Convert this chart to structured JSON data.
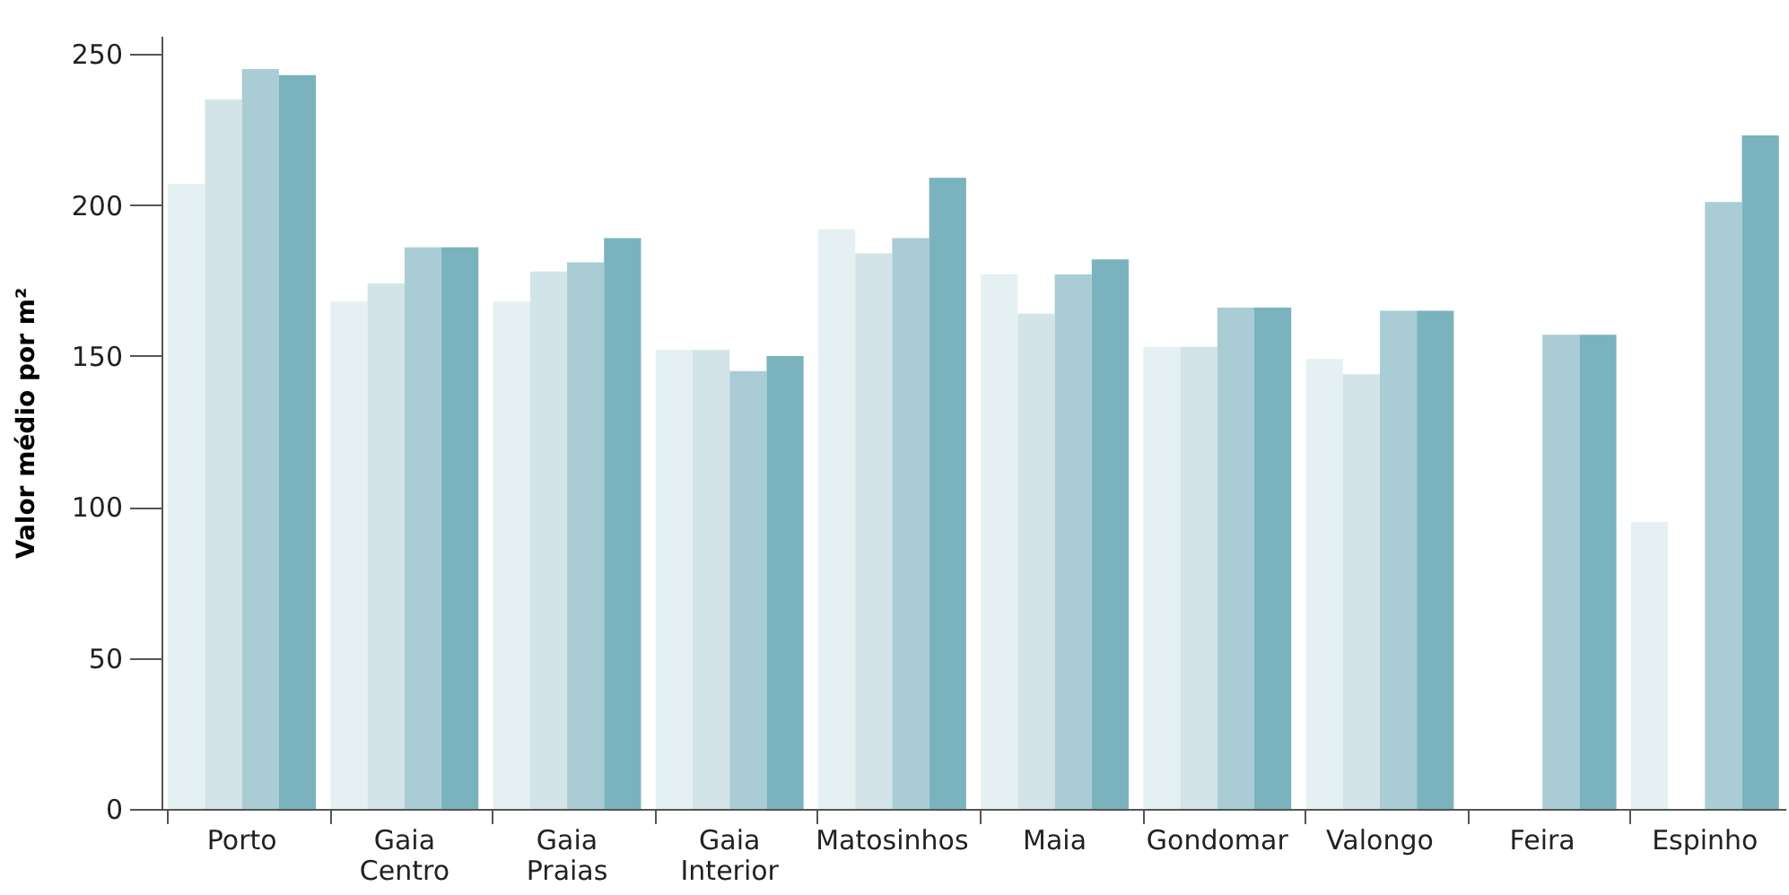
{
  "chart_data": {
    "type": "bar",
    "ylabel": "Valor médio por m²",
    "categories": [
      "Porto",
      "Gaia Centro",
      "Gaia Praias",
      "Gaia Interior",
      "Matosinhos",
      "Maia",
      "Gondomar",
      "Valongo",
      "Feira",
      "Espinho"
    ],
    "series": [
      {
        "color": "#e4f0f2",
        "values": [
          207,
          168,
          168,
          152,
          192,
          177,
          153,
          149,
          null,
          95
        ]
      },
      {
        "color": "#d2e4e8",
        "values": [
          235,
          174,
          178,
          152,
          184,
          164,
          153,
          144,
          null,
          null
        ]
      },
      {
        "color": "#aacdd5",
        "values": [
          245,
          186,
          181,
          145,
          189,
          177,
          166,
          165,
          157,
          201
        ]
      },
      {
        "color": "#7ab3be",
        "values": [
          243,
          186,
          189,
          150,
          209,
          182,
          166,
          165,
          157,
          223
        ]
      }
    ],
    "ylim": [
      0,
      256
    ],
    "yticks": [
      0,
      50,
      100,
      150,
      200,
      250
    ],
    "grid": false,
    "legend": false
  }
}
